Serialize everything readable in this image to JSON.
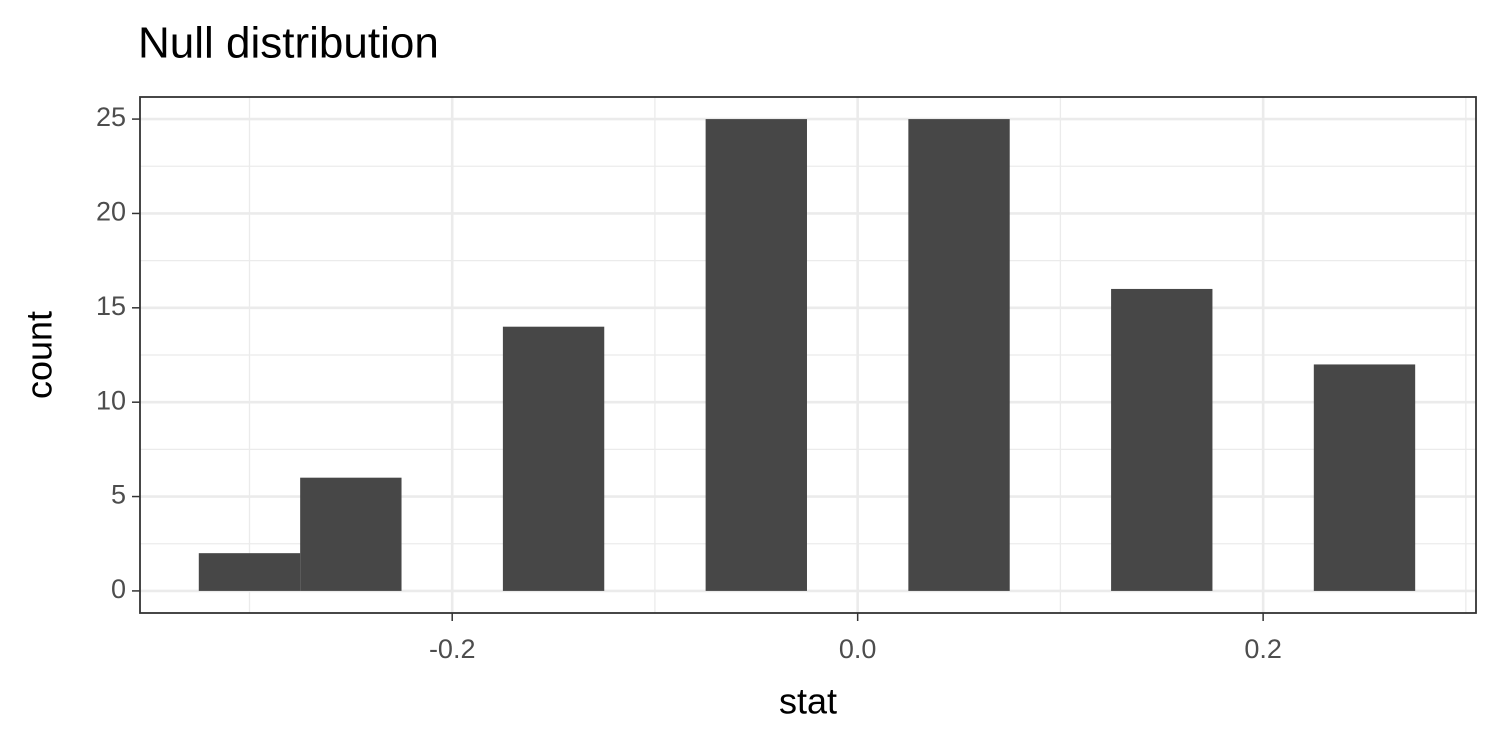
{
  "chart_data": {
    "type": "histogram",
    "title": "Null distribution",
    "x_label": "stat",
    "y_label": "count",
    "bins": [
      -0.325,
      -0.275,
      -0.225,
      -0.175,
      -0.125,
      -0.075,
      -0.025,
      0.025,
      0.075,
      0.125,
      0.175,
      0.225,
      0.275
    ],
    "values": [
      2,
      6,
      0,
      14,
      0,
      25,
      0,
      25,
      0,
      16,
      0,
      12
    ],
    "color": "#474747",
    "xlim": [
      -0.354,
      0.305
    ],
    "ylim": [
      -1.17,
      26.17
    ],
    "xticks": [
      -0.2,
      {
        "value": 0,
        "label": "0.0"
      },
      0.2
    ],
    "yticks": [
      0,
      5,
      10,
      15,
      20,
      25
    ],
    "x_minor_ticks": [
      -0.3,
      -0.1,
      0.1,
      0.3
    ],
    "y_minor_ticks": [
      2.5,
      7.5,
      12.5,
      17.5,
      22.5
    ],
    "grid": true
  }
}
